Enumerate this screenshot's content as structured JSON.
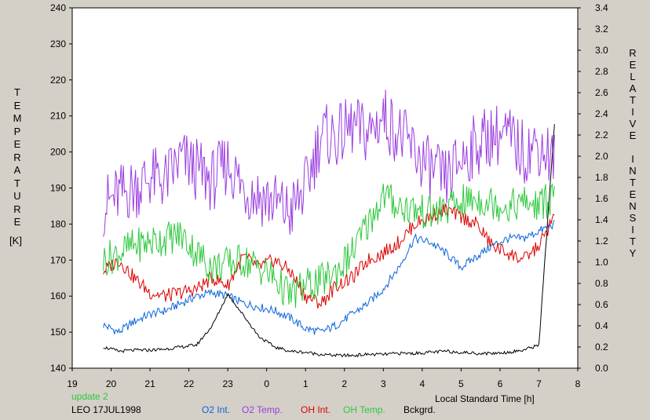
{
  "chart_data": {
    "type": "line",
    "xlabel": "Local Standard Time [h]",
    "y_left_label": "TEMPERATURE",
    "y_left_unit": "[K]",
    "y_right_label": "RELATIVE INTENSITY",
    "xlim": [
      19,
      8
    ],
    "x_ticks": [
      "19",
      "20",
      "21",
      "22",
      "23",
      "0",
      "1",
      "2",
      "3",
      "4",
      "5",
      "6",
      "7",
      "8"
    ],
    "ylim_left": [
      140,
      240
    ],
    "y_left_ticks": [
      "140",
      "150",
      "160",
      "170",
      "180",
      "190",
      "200",
      "210",
      "220",
      "230",
      "240"
    ],
    "ylim_right": [
      0.0,
      3.4
    ],
    "y_right_ticks": [
      "0.0",
      "0.2",
      "0.4",
      "0.6",
      "0.8",
      "1.0",
      "1.2",
      "1.4",
      "1.6",
      "1.8",
      "2.0",
      "2.2",
      "2.4",
      "2.6",
      "2.8",
      "3.0",
      "3.2",
      "3.4"
    ],
    "grid": false,
    "status_text": "update 2",
    "station_text": "LEO 17JUL1998",
    "x": [
      19.8,
      20.2,
      20.6,
      21.0,
      21.4,
      21.8,
      22.2,
      22.6,
      23.0,
      23.4,
      23.8,
      24.2,
      24.6,
      25.0,
      25.4,
      25.8,
      26.2,
      26.6,
      27.0,
      27.4,
      27.8,
      28.2,
      28.6,
      29.0,
      29.4,
      29.8,
      30.2,
      30.6,
      31.0,
      31.4
    ],
    "series": [
      {
        "name": "O2 Int.",
        "color": "#0a64dc",
        "axis": "left",
        "values": [
          152,
          150,
          153,
          155,
          156,
          158,
          160,
          161,
          160,
          158,
          157,
          156,
          154,
          151,
          150,
          152,
          155,
          158,
          162,
          168,
          176,
          175,
          172,
          168,
          171,
          174,
          176,
          176,
          178,
          180
        ]
      },
      {
        "name": "O2 Temp.",
        "color": "#9a3ce0",
        "axis": "left",
        "values": [
          185,
          188,
          190,
          193,
          192,
          198,
          195,
          192,
          197,
          190,
          188,
          186,
          183,
          190,
          205,
          204,
          207,
          205,
          210,
          205,
          200,
          195,
          192,
          198,
          202,
          205,
          204,
          200,
          202,
          198
        ]
      },
      {
        "name": "OH Int.",
        "color": "#dc0000",
        "axis": "left",
        "values": [
          167,
          170,
          165,
          161,
          160,
          161,
          162,
          165,
          163,
          171,
          168,
          170,
          167,
          160,
          158,
          163,
          165,
          170,
          172,
          175,
          180,
          182,
          184,
          182,
          180,
          174,
          172,
          170,
          174,
          182
        ]
      },
      {
        "name": "OH Temp.",
        "color": "#2dc83c",
        "axis": "left",
        "values": [
          170,
          172,
          174,
          175,
          176,
          177,
          172,
          168,
          169,
          170,
          168,
          165,
          160,
          163,
          164,
          167,
          172,
          180,
          188,
          185,
          184,
          183,
          184,
          186,
          187,
          186,
          185,
          186,
          185,
          188
        ]
      },
      {
        "name": "Bckgrd.",
        "color": "#000000",
        "axis": "right",
        "values": [
          0.2,
          0.16,
          0.17,
          0.17,
          0.18,
          0.2,
          0.22,
          0.4,
          0.7,
          0.5,
          0.3,
          0.2,
          0.16,
          0.15,
          0.13,
          0.12,
          0.12,
          0.13,
          0.13,
          0.14,
          0.14,
          0.15,
          0.16,
          0.15,
          0.14,
          0.14,
          0.15,
          0.17,
          0.22,
          2.3
        ]
      }
    ]
  }
}
